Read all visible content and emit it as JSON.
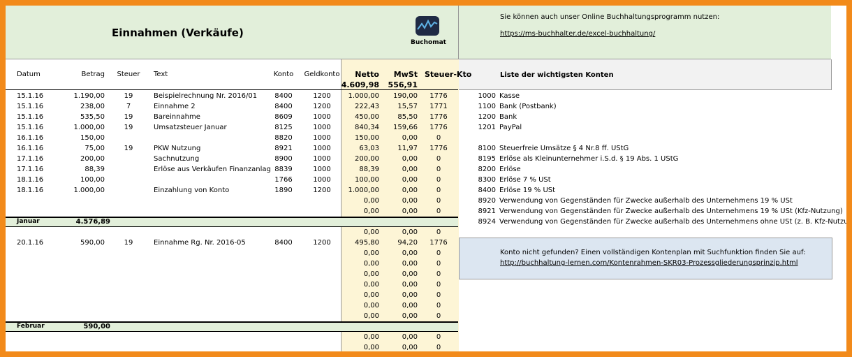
{
  "header": {
    "title": "Einnahmen (Verkäufe)",
    "logo": "Buchomat",
    "info": "Sie können auch unser Online Buchhaltungsprogramm nutzen:",
    "link": "https://ms-buchhalter.de/excel-buchhaltung/"
  },
  "columns": {
    "datum": "Datum",
    "betrag": "Betrag",
    "steuer": "Steuer",
    "text": "Text",
    "konto": "Konto",
    "geldkonto": "Geldkonto",
    "netto": "Netto",
    "mwst": "MwSt",
    "steuer_kto": "Steuer-Kto"
  },
  "totals": {
    "netto": "4.609,98",
    "mwst": "556,91"
  },
  "rows": [
    {
      "datum": "15.1.16",
      "betrag": "1.190,00",
      "steuer": "19",
      "text": "Beispielrechnung Nr. 2016/01",
      "konto": "8400",
      "geldkonto": "1200",
      "netto": "1.000,00",
      "mwst": "190,00",
      "steuer_kto": "1776"
    },
    {
      "datum": "15.1.16",
      "betrag": "238,00",
      "steuer": "7",
      "text": "Einnahme 2",
      "konto": "8400",
      "geldkonto": "1200",
      "netto": "222,43",
      "mwst": "15,57",
      "steuer_kto": "1771"
    },
    {
      "datum": "15.1.16",
      "betrag": "535,50",
      "steuer": "19",
      "text": "Bareinnahme",
      "konto": "8609",
      "geldkonto": "1000",
      "netto": "450,00",
      "mwst": "85,50",
      "steuer_kto": "1776"
    },
    {
      "datum": "15.1.16",
      "betrag": "1.000,00",
      "steuer": "19",
      "text": "Umsatzsteuer Januar",
      "konto": "8125",
      "geldkonto": "1000",
      "netto": "840,34",
      "mwst": "159,66",
      "steuer_kto": "1776"
    },
    {
      "datum": "16.1.16",
      "betrag": "150,00",
      "konto": "8820",
      "geldkonto": "1000",
      "netto": "150,00",
      "mwst": "0,00",
      "steuer_kto": "0"
    },
    {
      "datum": "16.1.16",
      "betrag": "75,00",
      "steuer": "19",
      "text": "PKW Nutzung",
      "konto": "8921",
      "geldkonto": "1000",
      "netto": "63,03",
      "mwst": "11,97",
      "steuer_kto": "1776"
    },
    {
      "datum": "17.1.16",
      "betrag": "200,00",
      "text": "Sachnutzung",
      "konto": "8900",
      "geldkonto": "1000",
      "netto": "200,00",
      "mwst": "0,00",
      "steuer_kto": "0"
    },
    {
      "datum": "17.1.16",
      "betrag": "88,39",
      "text": "Erlöse aus Verkäufen Finanzanlag",
      "konto": "8839",
      "geldkonto": "1000",
      "netto": "88,39",
      "mwst": "0,00",
      "steuer_kto": "0"
    },
    {
      "datum": "18.1.16",
      "betrag": "100,00",
      "konto": "1766",
      "geldkonto": "1000",
      "netto": "100,00",
      "mwst": "0,00",
      "steuer_kto": "0"
    },
    {
      "datum": "18.1.16",
      "betrag": "1.000,00",
      "text": "Einzahlung von Konto",
      "konto": "1890",
      "geldkonto": "1200",
      "netto": "1.000,00",
      "mwst": "0,00",
      "steuer_kto": "0"
    },
    {
      "netto": "0,00",
      "mwst": "0,00",
      "steuer_kto": "0"
    },
    {
      "netto": "0,00",
      "mwst": "0,00",
      "steuer_kto": "0"
    },
    {
      "month": "Januar",
      "total": "4.576,89"
    },
    {
      "netto": "0,00",
      "mwst": "0,00",
      "steuer_kto": "0"
    },
    {
      "datum": "20.1.16",
      "betrag": "590,00",
      "steuer": "19",
      "text": "Einnahme Rg. Nr. 2016-05",
      "konto": "8400",
      "geldkonto": "1200",
      "netto": "495,80",
      "mwst": "94,20",
      "steuer_kto": "1776"
    },
    {
      "netto": "0,00",
      "mwst": "0,00",
      "steuer_kto": "0"
    },
    {
      "netto": "0,00",
      "mwst": "0,00",
      "steuer_kto": "0"
    },
    {
      "netto": "0,00",
      "mwst": "0,00",
      "steuer_kto": "0"
    },
    {
      "netto": "0,00",
      "mwst": "0,00",
      "steuer_kto": "0"
    },
    {
      "netto": "0,00",
      "mwst": "0,00",
      "steuer_kto": "0"
    },
    {
      "netto": "0,00",
      "mwst": "0,00",
      "steuer_kto": "0"
    },
    {
      "netto": "0,00",
      "mwst": "0,00",
      "steuer_kto": "0"
    },
    {
      "month": "Februar",
      "total": "590,00"
    },
    {
      "netto": "0,00",
      "mwst": "0,00",
      "steuer_kto": "0"
    },
    {
      "netto": "0,00",
      "mwst": "0,00",
      "steuer_kto": "0"
    }
  ],
  "accounts": {
    "title": "Liste der wichtigsten Konten",
    "items": [
      [
        "1000",
        "Kasse"
      ],
      [
        "1100",
        "Bank (Postbank)"
      ],
      [
        "1200",
        "Bank"
      ],
      [
        "1201",
        "PayPal"
      ],
      [
        "8100",
        "Steuerfreie Umsätze § 4 Nr.8 ff. UStG"
      ],
      [
        "8195",
        "Erlöse als Kleinunternehmer i.S.d. § 19 Abs. 1 UStG"
      ],
      [
        "8200",
        "Erlöse"
      ],
      [
        "8300",
        "Erlöse 7 % USt"
      ],
      [
        "8400",
        "Erlöse 19 % USt"
      ],
      [
        "8920",
        "Verwendung von Gegenständen für Zwecke außerhalb des Unternehmens 19 % USt"
      ],
      [
        "8921",
        "Verwendung von Gegenständen für Zwecke außerhalb des Unternehmens 19 % USt (Kfz-Nutzung)"
      ],
      [
        "8924",
        "Verwendung von Gegenständen für Zwecke außerhalb des Unternehmens ohne USt (z. B. Kfz-Nutzung)"
      ]
    ]
  },
  "note": {
    "text": "Konto nicht gefunden? Einen vollständigen Kontenplan mit Suchfunktion finden Sie auf:",
    "link": "http://buchhaltung-lernen.com/Kontenrahmen-SKR03-Prozessgliederungsprinzip.html"
  }
}
